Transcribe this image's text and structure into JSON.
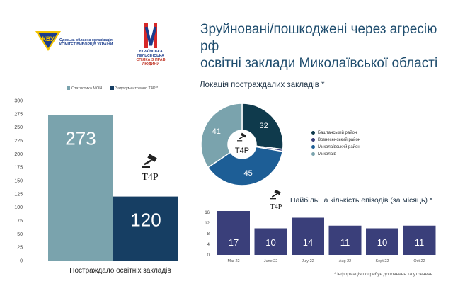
{
  "header": {
    "title_line1": "Зруйновані/пошкоджені через агресію рф",
    "title_line2": "освітні заклади Миколаївської області",
    "logo_cvu_line1": "Одеська обласна організація",
    "logo_cvu_line2": "КОМІТЕТ ВИБОРЦІВ УКРАЇНИ",
    "logo_uhs_line1": "УКРАЇНСЬКА ГЕЛЬСІНСЬКА",
    "logo_uhs_line2": "СПІЛКА З ПРАВ ЛЮДИНИ"
  },
  "brand": {
    "t4p": "T4P"
  },
  "colors": {
    "light": "#7aa3ad",
    "dark": "#163e63",
    "mid": "#1d5e96",
    "navy": "#0f3a4c",
    "purple": "#3a3f7a",
    "steel": "#7596a8"
  },
  "chart_data": [
    {
      "type": "bar",
      "categories": [
        "Постраждало освітніх закладів"
      ],
      "series": [
        {
          "name": "Статистика МОН",
          "values": [
            273
          ]
        },
        {
          "name": "Задокументовано T4P *",
          "values": [
            120
          ]
        }
      ],
      "data_labels": [
        "273",
        "120"
      ],
      "ylim": [
        0,
        300
      ],
      "yticks": [
        0,
        25,
        50,
        75,
        100,
        125,
        150,
        175,
        200,
        225,
        250,
        275,
        300
      ],
      "legend": "top",
      "grid": false,
      "xlabel": "Постраждало освітніх закладів"
    },
    {
      "type": "pie",
      "title": "Локація постраждалих закладів *",
      "slices": [
        {
          "name": "Баштанський район",
          "value": 32
        },
        {
          "name": "Вознесенський район",
          "value": 1
        },
        {
          "name": "Миколаївський район",
          "value": 45
        },
        {
          "name": "Миколаїв",
          "value": 41
        }
      ],
      "data_labels": [
        "32",
        "45",
        "41"
      ],
      "donut": true,
      "legend": "right"
    },
    {
      "type": "bar",
      "title": "Найбільша кількість епізодів (за місяць) *",
      "categories": [
        "Mar 22",
        "June 22",
        "July 22",
        "Aug 22",
        "Sept 22",
        "Oct 22"
      ],
      "values": [
        17,
        10,
        14,
        11,
        10,
        11
      ],
      "ylim": [
        0,
        16
      ],
      "yticks": [
        0,
        4,
        8,
        12,
        16
      ],
      "grid": false
    }
  ],
  "footnote": "* інформація потребує доповнень та уточнень"
}
